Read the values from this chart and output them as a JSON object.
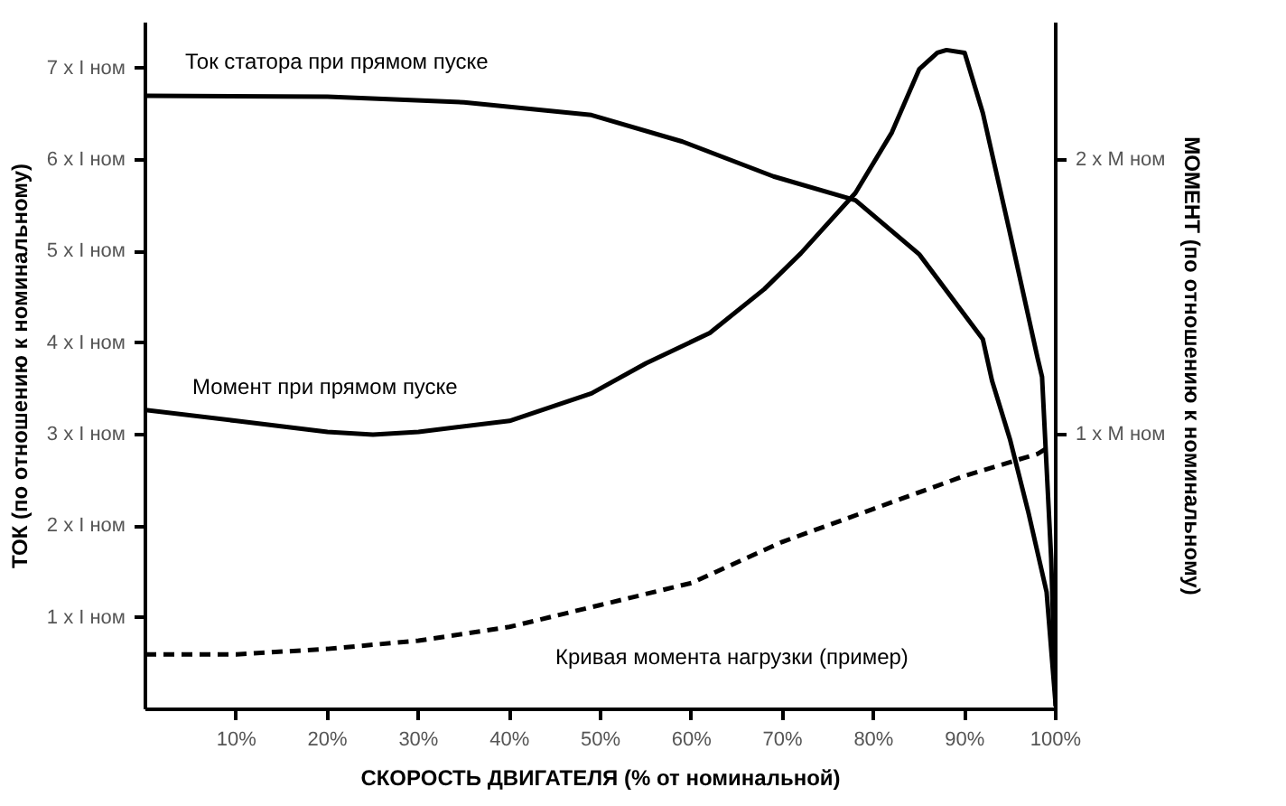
{
  "chart_data": {
    "type": "line",
    "xlabel": "СКОРОСТЬ ДВИГАТЕЛЯ (% от номинальной)",
    "ylabel": "ТОК (по отношению к номинальному)",
    "y2label": "МОМЕНТ (по отношению к номинальному)",
    "xlim": [
      0,
      100
    ],
    "xticks": [
      {
        "value": 10,
        "label": "10%"
      },
      {
        "value": 20,
        "label": "20%"
      },
      {
        "value": 30,
        "label": "30%"
      },
      {
        "value": 40,
        "label": "40%"
      },
      {
        "value": 50,
        "label": "50%"
      },
      {
        "value": 60,
        "label": "60%"
      },
      {
        "value": 70,
        "label": "70%"
      },
      {
        "value": 80,
        "label": "80%"
      },
      {
        "value": 90,
        "label": "90%"
      },
      {
        "value": 100,
        "label": "100%"
      }
    ],
    "ylim": [
      0,
      7.5
    ],
    "yticks": [
      {
        "value": 1,
        "label": "1 x I ном"
      },
      {
        "value": 2,
        "label": "2 x I ном"
      },
      {
        "value": 3,
        "label": "3 x I ном"
      },
      {
        "value": 4,
        "label": "4 x I ном"
      },
      {
        "value": 5,
        "label": "5 x I ном"
      },
      {
        "value": 6,
        "label": "6 x I ном"
      },
      {
        "value": 7,
        "label": "7 x I ном"
      }
    ],
    "y2lim": [
      0,
      2.5
    ],
    "y2ticks": [
      {
        "value": 1,
        "label": "1 x M ном"
      },
      {
        "value": 2,
        "label": "2 x M ном"
      }
    ],
    "grid": false,
    "marker": "none",
    "series": [
      {
        "name": "Ток статора при прямом пуске",
        "color": "#000000",
        "line_style": "solid",
        "x": [
          0,
          20,
          35,
          49,
          59,
          69,
          78,
          85,
          92,
          93,
          95,
          97,
          99,
          100
        ],
        "values": [
          6.7,
          6.69,
          6.63,
          6.49,
          6.2,
          5.82,
          5.56,
          4.97,
          4.04,
          3.59,
          2.94,
          2.15,
          1.28,
          0.04
        ]
      },
      {
        "name": "Момент при прямом пуске",
        "color": "#000000",
        "line_style": "solid",
        "axis": "y2",
        "x": [
          0,
          10,
          20,
          25,
          30,
          40,
          49,
          55,
          62,
          68,
          72,
          78,
          82,
          85,
          87,
          88,
          90,
          92,
          95,
          98,
          98.5,
          99.5,
          100
        ],
        "values": [
          1.09,
          1.05,
          1.01,
          1.0,
          1.01,
          1.05,
          1.15,
          1.26,
          1.37,
          1.53,
          1.66,
          1.88,
          2.1,
          2.33,
          2.39,
          2.4,
          2.39,
          2.17,
          1.73,
          1.28,
          1.21,
          0.55,
          0.01
        ]
      },
      {
        "name": "Кривая момента нагрузки (пример)",
        "color": "#000000",
        "line_style": "dashed",
        "axis": "y2",
        "x": [
          0,
          10,
          20,
          30,
          40,
          50,
          60,
          70,
          80,
          90,
          98,
          99.5
        ],
        "values": [
          0.2,
          0.2,
          0.22,
          0.25,
          0.3,
          0.38,
          0.46,
          0.61,
          0.73,
          0.85,
          0.93,
          0.96
        ]
      }
    ]
  }
}
